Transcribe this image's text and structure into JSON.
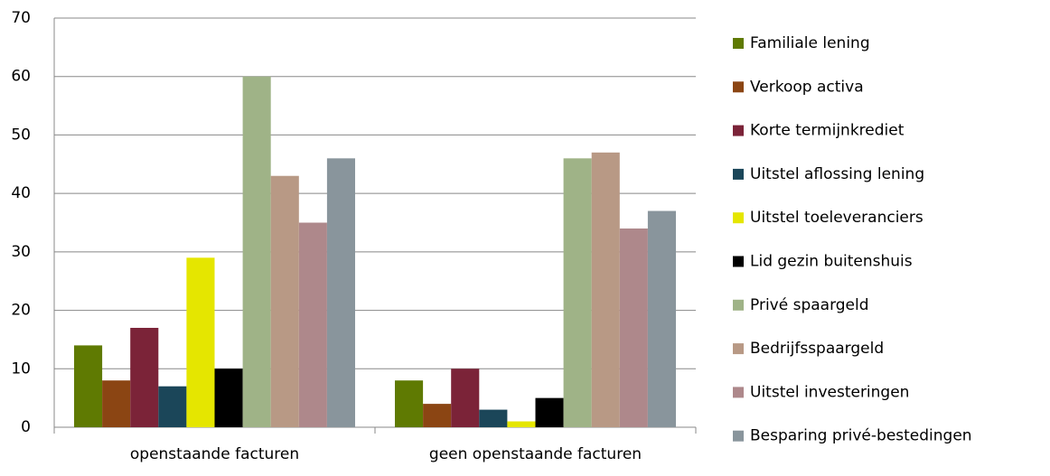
{
  "chart_data": {
    "type": "bar",
    "categories": [
      "openstaande facturen",
      "geen openstaande facturen"
    ],
    "series": [
      {
        "name": "Familiale lening",
        "color": "#5f7a02",
        "values": [
          14,
          8
        ]
      },
      {
        "name": "Verkoop activa",
        "color": "#8b4513",
        "values": [
          8,
          4
        ]
      },
      {
        "name": "Korte termijnkrediet",
        "color": "#7b2338",
        "values": [
          17,
          10
        ]
      },
      {
        "name": "Uitstel aflossing lening",
        "color": "#1b4659",
        "values": [
          7,
          3
        ]
      },
      {
        "name": "Uitstel toeleveranciers",
        "color": "#e5e600",
        "values": [
          29,
          1
        ]
      },
      {
        "name": "Lid gezin buitenshuis",
        "color": "#000000",
        "values": [
          10,
          5
        ]
      },
      {
        "name": "Privé spaargeld",
        "color": "#9fb387",
        "values": [
          60,
          46
        ]
      },
      {
        "name": "Bedrijfsspaargeld",
        "color": "#b89985",
        "values": [
          43,
          47
        ]
      },
      {
        "name": "Uitstel investeringen",
        "color": "#ae888b",
        "values": [
          35,
          34
        ]
      },
      {
        "name": "Besparing privé-bestedingen",
        "color": "#89959c",
        "values": [
          46,
          37
        ]
      }
    ],
    "ylim": [
      0,
      70
    ],
    "yticks": [
      0,
      10,
      20,
      30,
      40,
      50,
      60,
      70
    ],
    "grid": true,
    "legend": "right"
  }
}
